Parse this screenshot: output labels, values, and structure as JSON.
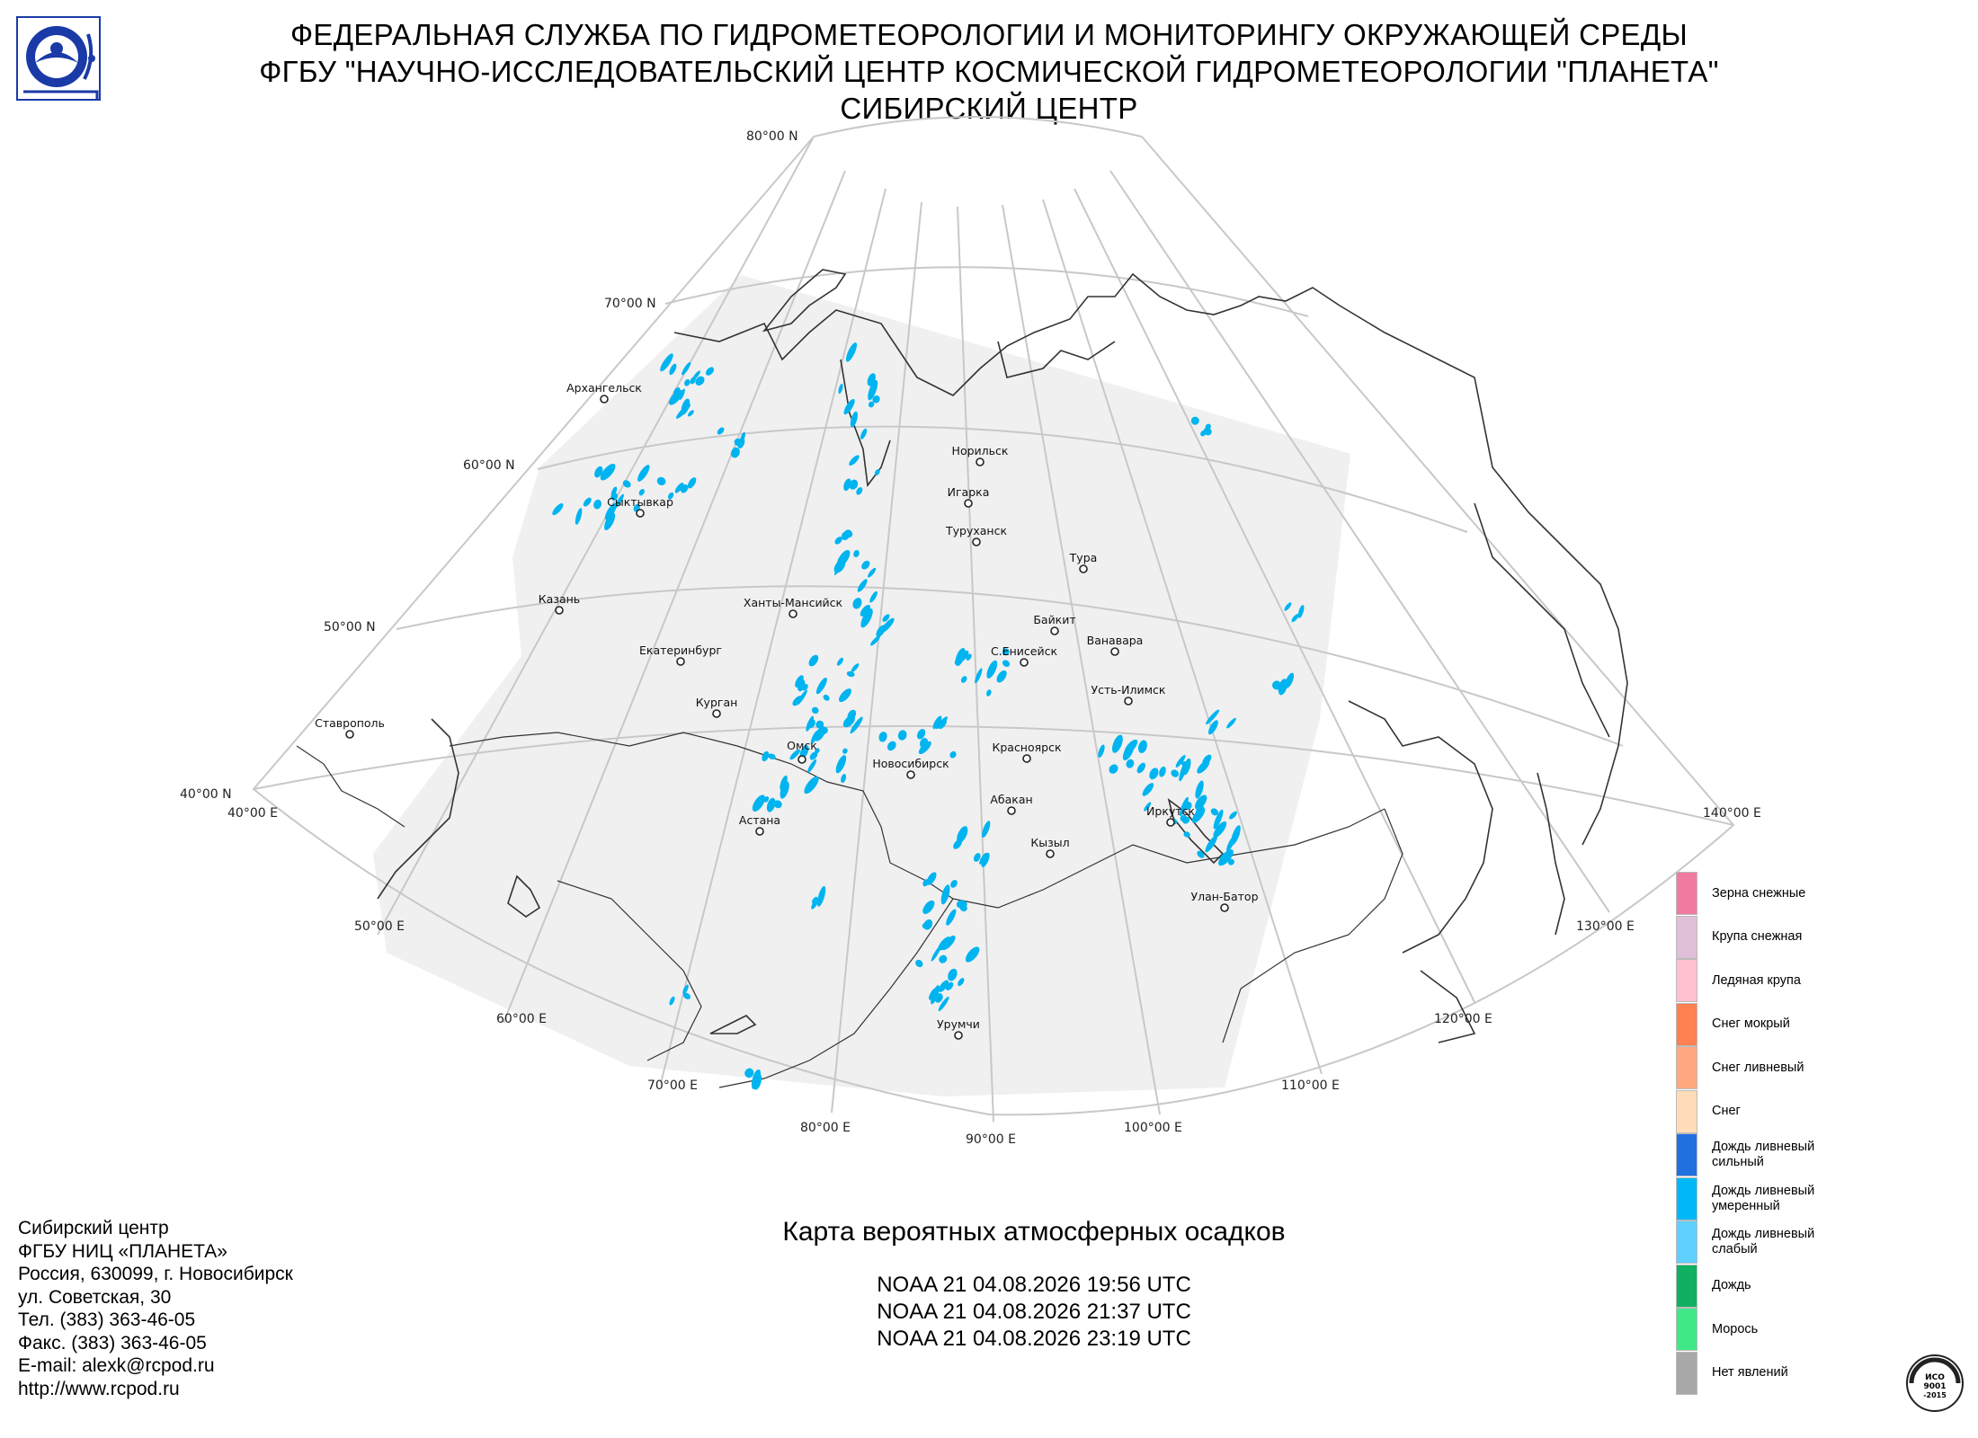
{
  "header": {
    "line1": "ФЕДЕРАЛЬНАЯ СЛУЖБА ПО ГИДРОМЕТЕОРОЛОГИИ И МОНИТОРИНГУ ОКРУЖАЮЩЕЙ СРЕДЫ",
    "line2": "ФГБУ \"НАУЧНО-ИССЛЕДОВАТЕЛЬСКИЙ ЦЕНТР КОСМИЧЕСКОЙ ГИДРОМЕТЕОРОЛОГИИ \"ПЛАНЕТА\"",
    "line3": "СИБИРСКИЙ ЦЕНТР"
  },
  "logo_icon": "roshydromet-logo-icon",
  "map": {
    "latitude_labels": [
      "80°00 N",
      "70°00 N",
      "60°00 N",
      "50°00 N",
      "40°00 N"
    ],
    "longitude_labels": [
      "40°00 E",
      "50°00 E",
      "60°00 E",
      "70°00 E",
      "80°00 E",
      "90°00 E",
      "100°00 E",
      "110°00 E",
      "120°00 E",
      "130°00 E",
      "140°00 E"
    ],
    "cities": [
      "Архангельск",
      "Сыктывкар",
      "Казань",
      "Ставрополь",
      "Екатеринбург",
      "Ханты-Мансийск",
      "Курган",
      "Омск",
      "Астана",
      "Новосибирск",
      "Норильск",
      "Игарка",
      "Туруханск",
      "Тура",
      "Байкит",
      "С.Енисейск",
      "Ванавара",
      "Усть-Илимск",
      "Красноярск",
      "Абакан",
      "Кызыл",
      "Иркутск",
      "Улан-Батор",
      "Урумчи"
    ],
    "precip_color": "#00b4f0",
    "coverage_color": "#f0f0f0",
    "grid_color": "#c8c8c8"
  },
  "contact": {
    "line1": "Сибирский центр",
    "line2": "ФГБУ НИЦ «ПЛАНЕТА»",
    "line3": "Россия, 630099, г. Новосибирск",
    "line4": "ул. Советская, 30",
    "line5": "Тел. (383) 363-46-05",
    "line6": "Факс. (383) 363-46-05",
    "line7": "E-mail: alexk@rcpod.ru",
    "line8": "http://www.rcpod.ru"
  },
  "map_title": "Карта вероятных атмосферных осадков",
  "passes": [
    "NOAA 21 04.08.2026   19:56 UTC",
    "NOAA 21 04.08.2026   21:37 UTC",
    "NOAA 21 04.08.2026   23:19 UTC"
  ],
  "legend": [
    {
      "label": "Зерна снежные",
      "color": "#f07aa0"
    },
    {
      "label": "Крупа снежная",
      "color": "#e0c0d8"
    },
    {
      "label": "Ледяная крупа",
      "color": "#ffc0d0"
    },
    {
      "label": "Снег мокрый",
      "color": "#ff8050"
    },
    {
      "label": "Снег ливневый",
      "color": "#ffa880"
    },
    {
      "label": "Снег",
      "color": "#ffdcb8"
    },
    {
      "label": "Дождь ливневый\nсильный",
      "color": "#2070e0"
    },
    {
      "label": "Дождь ливневый\nумеренный",
      "color": "#00b8f8"
    },
    {
      "label": "Дождь ливневый\nслабый",
      "color": "#60d0ff"
    },
    {
      "label": "Дождь",
      "color": "#10b060"
    },
    {
      "label": "Морось",
      "color": "#40e888"
    },
    {
      "label": "Нет явлений",
      "color": "#a8a8a8"
    }
  ],
  "iso_badge": {
    "line1": "ИСО",
    "line2": "9001",
    "line3": "-2015",
    "arc_top": "ДОБРОСОВЕСТНЫЙ",
    "arc_bottom": "ПОСТАВЩИК"
  }
}
